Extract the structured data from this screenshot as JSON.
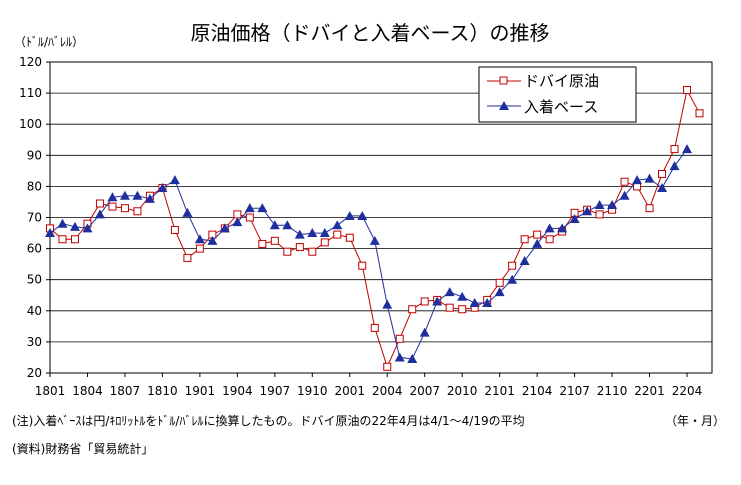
{
  "chart_data": {
    "type": "line",
    "title": "原油価格（ドバイと入着ベース）の推移",
    "y_unit_label": "（ﾄﾞﾙ/ﾊﾞﾚﾙ）",
    "x_unit_label": "（年・月）",
    "ylim": [
      20,
      120
    ],
    "yticks": [
      20,
      30,
      40,
      50,
      60,
      70,
      80,
      90,
      100,
      110,
      120
    ],
    "xtick_labels": [
      "1801",
      "1804",
      "1807",
      "1810",
      "1901",
      "1904",
      "1907",
      "1910",
      "2001",
      "2004",
      "2007",
      "2010",
      "2101",
      "2104",
      "2107",
      "2110",
      "2201",
      "2204"
    ],
    "grid": true,
    "legend_position": "top-right",
    "colors": {
      "dubai": "#c00000",
      "landed": "#1f2f9e",
      "grid": "#000000"
    },
    "series": [
      {
        "name": "ドバイ原油",
        "marker": "hollow-square",
        "values": [
          66.5,
          63,
          63,
          68,
          74.5,
          73.5,
          73,
          72,
          77,
          79.5,
          66,
          57,
          60,
          64.5,
          66.5,
          71,
          70,
          61.5,
          62.5,
          59,
          60.5,
          59,
          62,
          64.5,
          63.5,
          54.5,
          34.5,
          22,
          31,
          40.5,
          43,
          43.5,
          41,
          40.5,
          41,
          43.5,
          49,
          54.5,
          63,
          64.5,
          63,
          65.5,
          71.5,
          72.5,
          71,
          72.5,
          81.5,
          80,
          73,
          84,
          92,
          111,
          103.5
        ]
      },
      {
        "name": "入着ベース",
        "marker": "filled-triangle",
        "values": [
          65,
          68,
          67,
          66.5,
          71,
          76.5,
          77,
          77,
          76,
          79.5,
          82,
          71.5,
          63,
          62.5,
          66.5,
          68.5,
          73,
          73,
          67.5,
          67.5,
          64.5,
          65,
          65,
          67.5,
          70.5,
          70.5,
          62.5,
          42,
          25,
          24.5,
          33,
          43,
          46,
          44.5,
          42.5,
          42.5,
          46,
          50,
          56,
          61.5,
          66.5,
          66.5,
          69.5,
          72,
          74,
          74,
          77,
          82,
          82.5,
          79.5,
          86.5,
          92
        ]
      }
    ]
  },
  "notes": {
    "note1": "(注)入着ﾍﾞｰｽは円/ｷﾛﾘｯﾄﾙをﾄﾞﾙ/ﾊﾞﾚﾙに換算したもの。ドバイ原油の22年4月は4/1～4/19の平均",
    "note2": "(資料)財務省「貿易統計」"
  }
}
